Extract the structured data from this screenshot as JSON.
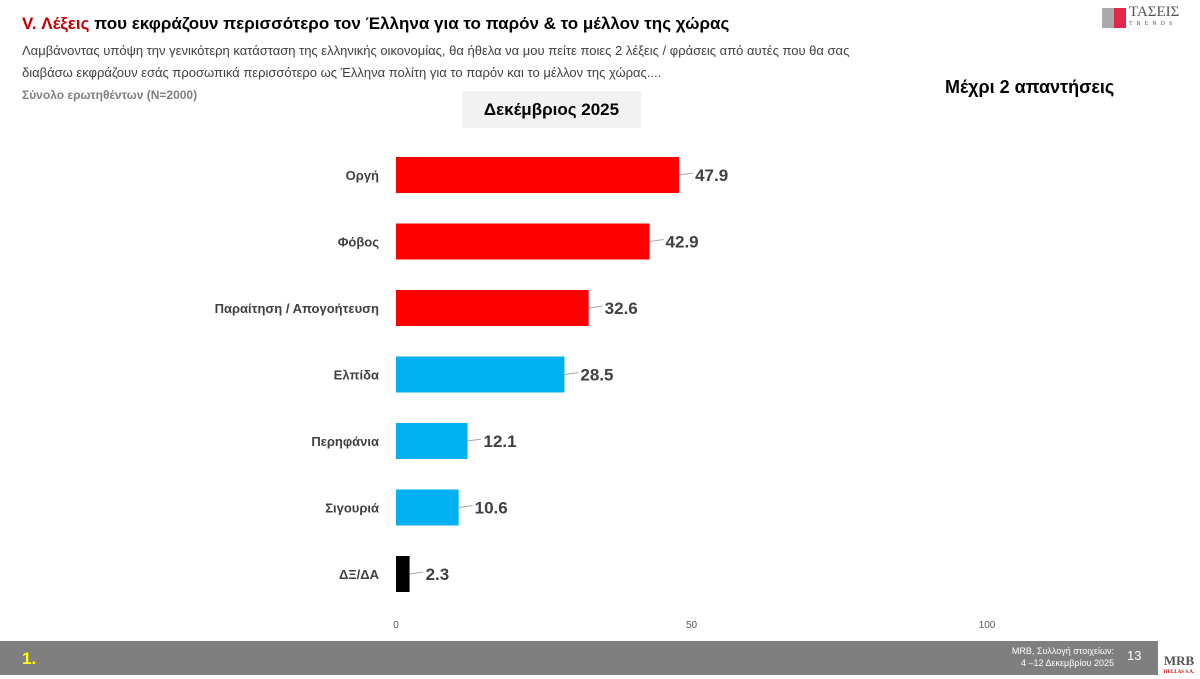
{
  "header": {
    "title_prefix": "V. Λέξεις",
    "title_rest": " που εκφράζουν περισσότερο τον Έλληνα για το παρόν & το μέλλον της χώρας",
    "subtitle": "Λαμβάνοντας υπόψη την γενικότερη κατάσταση της ελληνικής οικονομίας, θα ήθελα να μου πείτε ποιες 2  λέξεις / φράσεις από αυτές που θα σας διαβάσω εκφράζουν εσάς προσωπικά περισσότερο ως Έλληνα πολίτη για το παρόν και το μέλλον της χώρας....",
    "base": "Σύνολο ερωτηθέντων (N=2000)",
    "period": "Δεκέμβριος 2025",
    "note": "Μέχρι 2 απαντήσεις"
  },
  "logo": {
    "name": "ΤΑΣΕΙΣ",
    "sub": "TRENDS"
  },
  "footer": {
    "slide_label": "1.",
    "source_line1": "MRB, Συλλογή στοιχείων:",
    "source_line2": "4 –12 Δεκεμβρίου 2025",
    "page": "13",
    "brand": "MRB",
    "brand_sub": "HELLAS S.A."
  },
  "chart_data": {
    "type": "bar",
    "orientation": "horizontal",
    "categories": [
      "Οργή",
      "Φόβος",
      "Παραίτηση / Απογοήτευση",
      "Ελπίδα",
      "Περηφάνια",
      "Σιγουριά",
      "ΔΞ/ΔΑ"
    ],
    "values": [
      47.9,
      42.9,
      32.6,
      28.5,
      12.1,
      10.6,
      2.3
    ],
    "colors": [
      "#ff0000",
      "#ff0000",
      "#ff0000",
      "#00b0f0",
      "#00b0f0",
      "#00b0f0",
      "#000000"
    ],
    "xlim": [
      0,
      100
    ],
    "xticks": [
      0,
      50,
      100
    ],
    "grid": false
  }
}
